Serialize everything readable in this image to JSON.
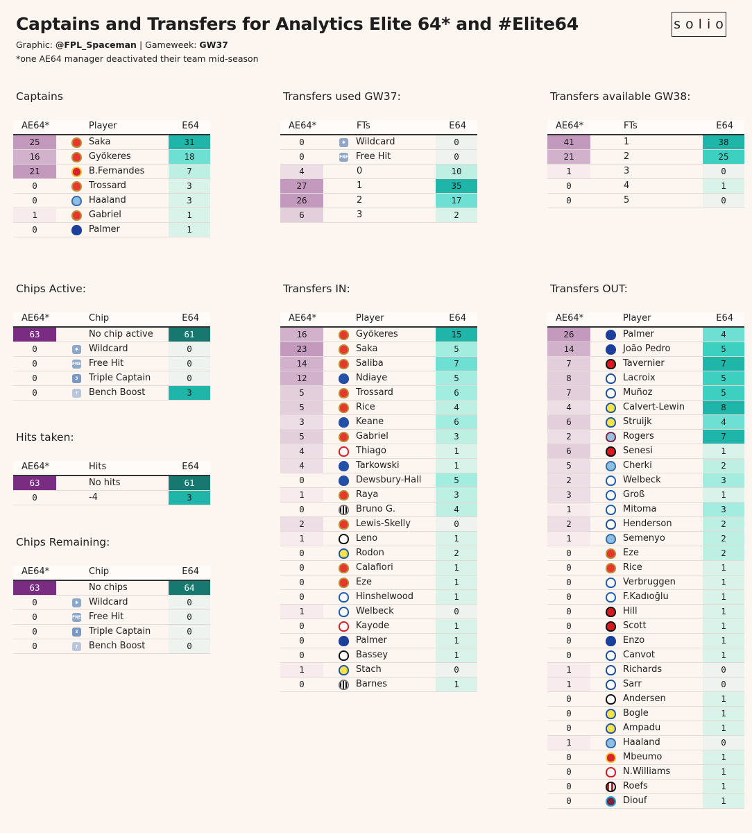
{
  "header": {
    "title": "Captains and Transfers for Analytics Elite 64* and #Elite64",
    "graphic_label": "Graphic:",
    "graphic_author": "@FPL_Spaceman",
    "separator": "|",
    "gameweek_label": "Gameweek:",
    "gameweek": "GW37",
    "note": "*one AE64 manager deactivated their team mid-season",
    "logo_text": "solio"
  },
  "colors": {
    "background": "#fdf5f0",
    "ae64_scale": [
      "#f7ebee",
      "#eddde4",
      "#e3cedb",
      "#d2b1cc",
      "#c399bd",
      "#7a2c82"
    ],
    "e64_scale": [
      "#eef3f0",
      "#d9f2ea",
      "#bdefe3",
      "#a3ede0",
      "#6ee0d3",
      "#3dcfc0",
      "#1fb5a8",
      "#17786f"
    ]
  },
  "captains": {
    "title": "Captains",
    "columns": [
      "AE64*",
      "Player",
      "E64"
    ],
    "rows": [
      {
        "ae": "25",
        "label": "Saka",
        "team": "arsenal",
        "e": "31"
      },
      {
        "ae": "16",
        "label": "Gyökeres",
        "team": "arsenal",
        "e": "18"
      },
      {
        "ae": "21",
        "label": "B.Fernandes",
        "team": "manutd",
        "e": "7"
      },
      {
        "ae": "0",
        "label": "Trossard",
        "team": "arsenal",
        "e": "3"
      },
      {
        "ae": "0",
        "label": "Haaland",
        "team": "mancity",
        "e": "3"
      },
      {
        "ae": "1",
        "label": "Gabriel",
        "team": "arsenal",
        "e": "1"
      },
      {
        "ae": "0",
        "label": "Palmer",
        "team": "chelsea",
        "e": "1"
      }
    ]
  },
  "transfers_used": {
    "title": "Transfers used GW37:",
    "columns": [
      "AE64*",
      "FTs",
      "E64"
    ],
    "rows": [
      {
        "ae": "0",
        "label": "Wildcard",
        "icon": "wildcard",
        "e": "0"
      },
      {
        "ae": "0",
        "label": "Free Hit",
        "icon": "freehit",
        "e": "0"
      },
      {
        "ae": "4",
        "label": "0",
        "e": "10"
      },
      {
        "ae": "27",
        "label": "1",
        "e": "35"
      },
      {
        "ae": "26",
        "label": "2",
        "e": "17"
      },
      {
        "ae": "6",
        "label": "3",
        "e": "2"
      }
    ]
  },
  "transfers_available": {
    "title": "Transfers available GW38:",
    "columns": [
      "AE64*",
      "FTs",
      "E64"
    ],
    "rows": [
      {
        "ae": "41",
        "label": "1",
        "e": "38"
      },
      {
        "ae": "21",
        "label": "2",
        "e": "25"
      },
      {
        "ae": "1",
        "label": "3",
        "e": "0"
      },
      {
        "ae": "0",
        "label": "4",
        "e": "1"
      },
      {
        "ae": "0",
        "label": "5",
        "e": "0"
      }
    ]
  },
  "chips_active": {
    "title": "Chips Active:",
    "columns": [
      "AE64*",
      "Chip",
      "E64"
    ],
    "rows": [
      {
        "ae": "63",
        "label": "No chip active",
        "e": "61"
      },
      {
        "ae": "0",
        "label": "Wildcard",
        "icon": "wildcard",
        "e": "0"
      },
      {
        "ae": "0",
        "label": "Free Hit",
        "icon": "freehit",
        "e": "0"
      },
      {
        "ae": "0",
        "label": "Triple Captain",
        "icon": "triplecaptain",
        "e": "0"
      },
      {
        "ae": "0",
        "label": "Bench Boost",
        "icon": "benchboost",
        "e": "3"
      }
    ]
  },
  "hits_taken": {
    "title": "Hits taken:",
    "columns": [
      "AE64*",
      "Hits",
      "E64"
    ],
    "rows": [
      {
        "ae": "63",
        "label": "No hits",
        "e": "61"
      },
      {
        "ae": "0",
        "label": "-4",
        "e": "3"
      }
    ]
  },
  "chips_remaining": {
    "title": "Chips Remaining:",
    "columns": [
      "AE64*",
      "Chip",
      "E64"
    ],
    "rows": [
      {
        "ae": "63",
        "label": "No chips",
        "e": "64"
      },
      {
        "ae": "0",
        "label": "Wildcard",
        "icon": "wildcard",
        "e": "0"
      },
      {
        "ae": "0",
        "label": "Free Hit",
        "icon": "freehit",
        "e": "0"
      },
      {
        "ae": "0",
        "label": "Triple Captain",
        "icon": "triplecaptain",
        "e": "0"
      },
      {
        "ae": "0",
        "label": "Bench Boost",
        "icon": "benchboost",
        "e": "0"
      }
    ]
  },
  "transfers_in": {
    "title": "Transfers IN:",
    "columns": [
      "AE64*",
      "Player",
      "E64"
    ],
    "rows": [
      {
        "ae": "16",
        "label": "Gyökeres",
        "team": "arsenal",
        "e": "15"
      },
      {
        "ae": "23",
        "label": "Saka",
        "team": "arsenal",
        "e": "5"
      },
      {
        "ae": "14",
        "label": "Saliba",
        "team": "arsenal",
        "e": "7"
      },
      {
        "ae": "12",
        "label": "Ndiaye",
        "team": "everton",
        "e": "5"
      },
      {
        "ae": "5",
        "label": "Trossard",
        "team": "arsenal",
        "e": "6"
      },
      {
        "ae": "5",
        "label": "Rice",
        "team": "arsenal",
        "e": "4"
      },
      {
        "ae": "3",
        "label": "Keane",
        "team": "everton",
        "e": "6"
      },
      {
        "ae": "5",
        "label": "Gabriel",
        "team": "arsenal",
        "e": "3"
      },
      {
        "ae": "4",
        "label": "Thiago",
        "team": "brentford",
        "e": "1"
      },
      {
        "ae": "4",
        "label": "Tarkowski",
        "team": "everton",
        "e": "1"
      },
      {
        "ae": "0",
        "label": "Dewsbury-Hall",
        "team": "everton",
        "e": "5"
      },
      {
        "ae": "1",
        "label": "Raya",
        "team": "arsenal",
        "e": "3"
      },
      {
        "ae": "0",
        "label": "Bruno G.",
        "team": "newcastle",
        "e": "4"
      },
      {
        "ae": "2",
        "label": "Lewis-Skelly",
        "team": "arsenal",
        "e": "0"
      },
      {
        "ae": "1",
        "label": "Leno",
        "team": "fulham",
        "e": "1"
      },
      {
        "ae": "0",
        "label": "Rodon",
        "team": "leeds",
        "e": "2"
      },
      {
        "ae": "0",
        "label": "Calafiori",
        "team": "arsenal",
        "e": "1"
      },
      {
        "ae": "0",
        "label": "Eze",
        "team": "arsenal",
        "e": "1"
      },
      {
        "ae": "0",
        "label": "Hinshelwood",
        "team": "brighton",
        "e": "1"
      },
      {
        "ae": "1",
        "label": "Welbeck",
        "team": "brighton",
        "e": "0"
      },
      {
        "ae": "0",
        "label": "Kayode",
        "team": "brentford",
        "e": "1"
      },
      {
        "ae": "0",
        "label": "Palmer",
        "team": "chelsea",
        "e": "1"
      },
      {
        "ae": "0",
        "label": "Bassey",
        "team": "fulham",
        "e": "1"
      },
      {
        "ae": "1",
        "label": "Stach",
        "team": "leeds",
        "e": "0"
      },
      {
        "ae": "0",
        "label": "Barnes",
        "team": "newcastle",
        "e": "1"
      }
    ]
  },
  "transfers_out": {
    "title": "Transfers OUT:",
    "columns": [
      "AE64*",
      "Player",
      "E64"
    ],
    "rows": [
      {
        "ae": "26",
        "label": "Palmer",
        "team": "chelsea",
        "e": "4"
      },
      {
        "ae": "14",
        "label": "João Pedro",
        "team": "chelsea",
        "e": "5"
      },
      {
        "ae": "7",
        "label": "Tavernier",
        "team": "bournemouth",
        "e": "7"
      },
      {
        "ae": "8",
        "label": "Lacroix",
        "team": "palace",
        "e": "5"
      },
      {
        "ae": "7",
        "label": "Muñoz",
        "team": "palace",
        "e": "5"
      },
      {
        "ae": "4",
        "label": "Calvert-Lewin",
        "team": "leeds",
        "e": "8"
      },
      {
        "ae": "6",
        "label": "Struijk",
        "team": "leeds",
        "e": "4"
      },
      {
        "ae": "2",
        "label": "Rogers",
        "team": "villa",
        "e": "7"
      },
      {
        "ae": "6",
        "label": "Senesi",
        "team": "bournemouth",
        "e": "1"
      },
      {
        "ae": "5",
        "label": "Cherki",
        "team": "mancity",
        "e": "2"
      },
      {
        "ae": "2",
        "label": "Welbeck",
        "team": "brighton",
        "e": "3"
      },
      {
        "ae": "3",
        "label": "Groß",
        "team": "brighton",
        "e": "1"
      },
      {
        "ae": "1",
        "label": "Mitoma",
        "team": "brighton",
        "e": "3"
      },
      {
        "ae": "2",
        "label": "Henderson",
        "team": "palace",
        "e": "2"
      },
      {
        "ae": "1",
        "label": "Semenyo",
        "team": "mancity",
        "e": "2"
      },
      {
        "ae": "0",
        "label": "Eze",
        "team": "arsenal",
        "e": "2"
      },
      {
        "ae": "0",
        "label": "Rice",
        "team": "arsenal",
        "e": "1"
      },
      {
        "ae": "0",
        "label": "Verbruggen",
        "team": "brighton",
        "e": "1"
      },
      {
        "ae": "0",
        "label": "F.Kadıoğlu",
        "team": "brighton",
        "e": "1"
      },
      {
        "ae": "0",
        "label": "Hill",
        "team": "bournemouth",
        "e": "1"
      },
      {
        "ae": "0",
        "label": "Scott",
        "team": "bournemouth",
        "e": "1"
      },
      {
        "ae": "0",
        "label": "Enzo",
        "team": "chelsea",
        "e": "1"
      },
      {
        "ae": "0",
        "label": "Canvot",
        "team": "palace",
        "e": "1"
      },
      {
        "ae": "1",
        "label": "Richards",
        "team": "palace",
        "e": "0"
      },
      {
        "ae": "1",
        "label": "Sarr",
        "team": "palace",
        "e": "0"
      },
      {
        "ae": "0",
        "label": "Andersen",
        "team": "fulham",
        "e": "1"
      },
      {
        "ae": "0",
        "label": "Bogle",
        "team": "leeds",
        "e": "1"
      },
      {
        "ae": "0",
        "label": "Ampadu",
        "team": "leeds",
        "e": "1"
      },
      {
        "ae": "1",
        "label": "Haaland",
        "team": "mancity",
        "e": "0"
      },
      {
        "ae": "0",
        "label": "Mbeumo",
        "team": "manutd",
        "e": "1"
      },
      {
        "ae": "0",
        "label": "N.Williams",
        "team": "forest",
        "e": "1"
      },
      {
        "ae": "0",
        "label": "Roefs",
        "team": "sunderland",
        "e": "1"
      },
      {
        "ae": "0",
        "label": "Diouf",
        "team": "westham",
        "e": "1"
      }
    ]
  }
}
